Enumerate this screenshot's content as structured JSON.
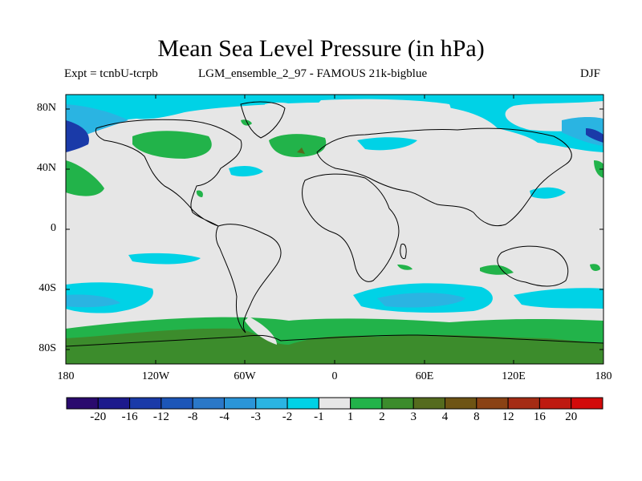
{
  "title": "Mean Sea Level Pressure (in hPa)",
  "experiment": "Expt = tcnbU-tcrpb",
  "run": "LGM_ensemble_2_97 - FAMOUS 21k-bigblue",
  "season": "DJF",
  "map": {
    "lat_labels": [
      "80N",
      "40N",
      "0",
      "40S",
      "80S"
    ],
    "lon_labels": [
      "180",
      "120W",
      "60W",
      "0",
      "60E",
      "120E",
      "180"
    ]
  },
  "colorbar": {
    "colors": [
      "#2a0a6e",
      "#1c1a8c",
      "#1a3aa8",
      "#1c56b8",
      "#2a78c8",
      "#2a95d8",
      "#2ab4e2",
      "#00d2e6",
      "#e6e6e6",
      "#22b34a",
      "#3c8c2c",
      "#556b1e",
      "#6e5414",
      "#8a4214",
      "#a52c14",
      "#be1a10",
      "#d20a0a"
    ],
    "labels": [
      "-20",
      "-16",
      "-12",
      "-8",
      "-4",
      "-3",
      "-2",
      "-1",
      "1",
      "2",
      "3",
      "4",
      "8",
      "12",
      "16",
      "20"
    ]
  }
}
